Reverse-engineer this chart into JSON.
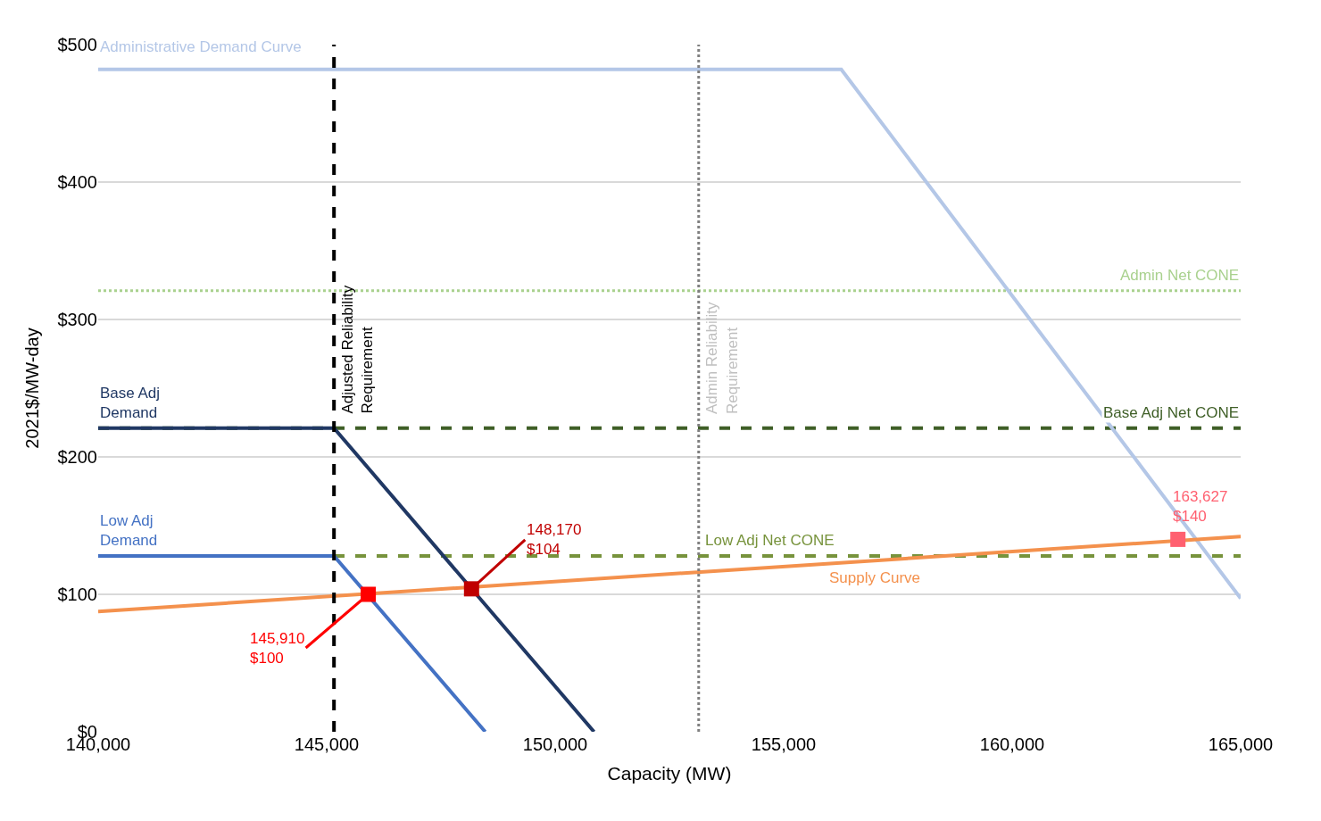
{
  "chart_data": {
    "type": "line",
    "xlabel": "Capacity (MW)",
    "ylabel": "2021$/MW-day",
    "xlim": [
      140000,
      165000
    ],
    "xticks": [
      {
        "value": 140000,
        "label": "140,000"
      },
      {
        "value": 145000,
        "label": "145,000"
      },
      {
        "value": 150000,
        "label": "150,000"
      },
      {
        "value": 155000,
        "label": "155,000"
      },
      {
        "value": 160000,
        "label": "160,000"
      },
      {
        "value": 165000,
        "label": "165,000"
      }
    ],
    "ylim": [
      0,
      500
    ],
    "yticks": [
      {
        "value": 0,
        "label": "$0"
      },
      {
        "value": 100,
        "label": "$100"
      },
      {
        "value": 200,
        "label": "$200"
      },
      {
        "value": 300,
        "label": "$300"
      },
      {
        "value": 400,
        "label": "$400"
      },
      {
        "value": 500,
        "label": "$500"
      }
    ],
    "grid": "y",
    "legend": false,
    "series": [
      {
        "name": "Administrative Demand Curve",
        "color": "#b4c7e7",
        "x": [
          140000,
          156260,
          165000
        ],
        "values": [
          482,
          482,
          97
        ]
      },
      {
        "name": "Base Adj Demand",
        "color": "#203864",
        "x": [
          140000,
          145160,
          150850
        ],
        "values": [
          221,
          221,
          0
        ]
      },
      {
        "name": "Low Adj Demand",
        "color": "#4472c4",
        "x": [
          140000,
          145160,
          148470
        ],
        "values": [
          128,
          128,
          0
        ]
      },
      {
        "name": "Supply Curve",
        "color": "#f4914d",
        "x": [
          140000,
          165000
        ],
        "values": [
          87.5,
          142
        ]
      },
      {
        "type": "scatter",
        "marker": "square",
        "x": [
          145910,
          148170,
          163627
        ],
        "values": [
          100,
          104,
          140
        ],
        "colors": [
          "#ff0000",
          "#c00000",
          "#ff6070"
        ]
      }
    ],
    "ref_lines": [
      {
        "axis": "x",
        "value": 145160,
        "label": "Adjusted Reliability Requirement",
        "color": "#000000",
        "line_style": "dashed"
      },
      {
        "axis": "x",
        "value": 153140,
        "label": "Admin Reliability Requirement",
        "color": "#7f7f7f",
        "line_style": "dotted"
      },
      {
        "axis": "y",
        "value": 321,
        "label": "Admin Net CONE",
        "color": "#a9d18e",
        "line_style": "dotted"
      },
      {
        "axis": "y",
        "value": 221,
        "label": "Base Adj Net CONE",
        "color": "#3f5f27",
        "line_style": "dashed"
      },
      {
        "axis": "y",
        "value": 128,
        "label": "Low Adj Net CONE",
        "color": "#77933c",
        "line_style": "dashed"
      }
    ],
    "annotations": [
      {
        "text": "145,910\n$100",
        "x": 145910,
        "y": 100
      },
      {
        "text": "148,170\n$104",
        "x": 148170,
        "y": 104
      },
      {
        "text": "163,627\n$140",
        "x": 163627,
        "y": 140
      }
    ]
  }
}
